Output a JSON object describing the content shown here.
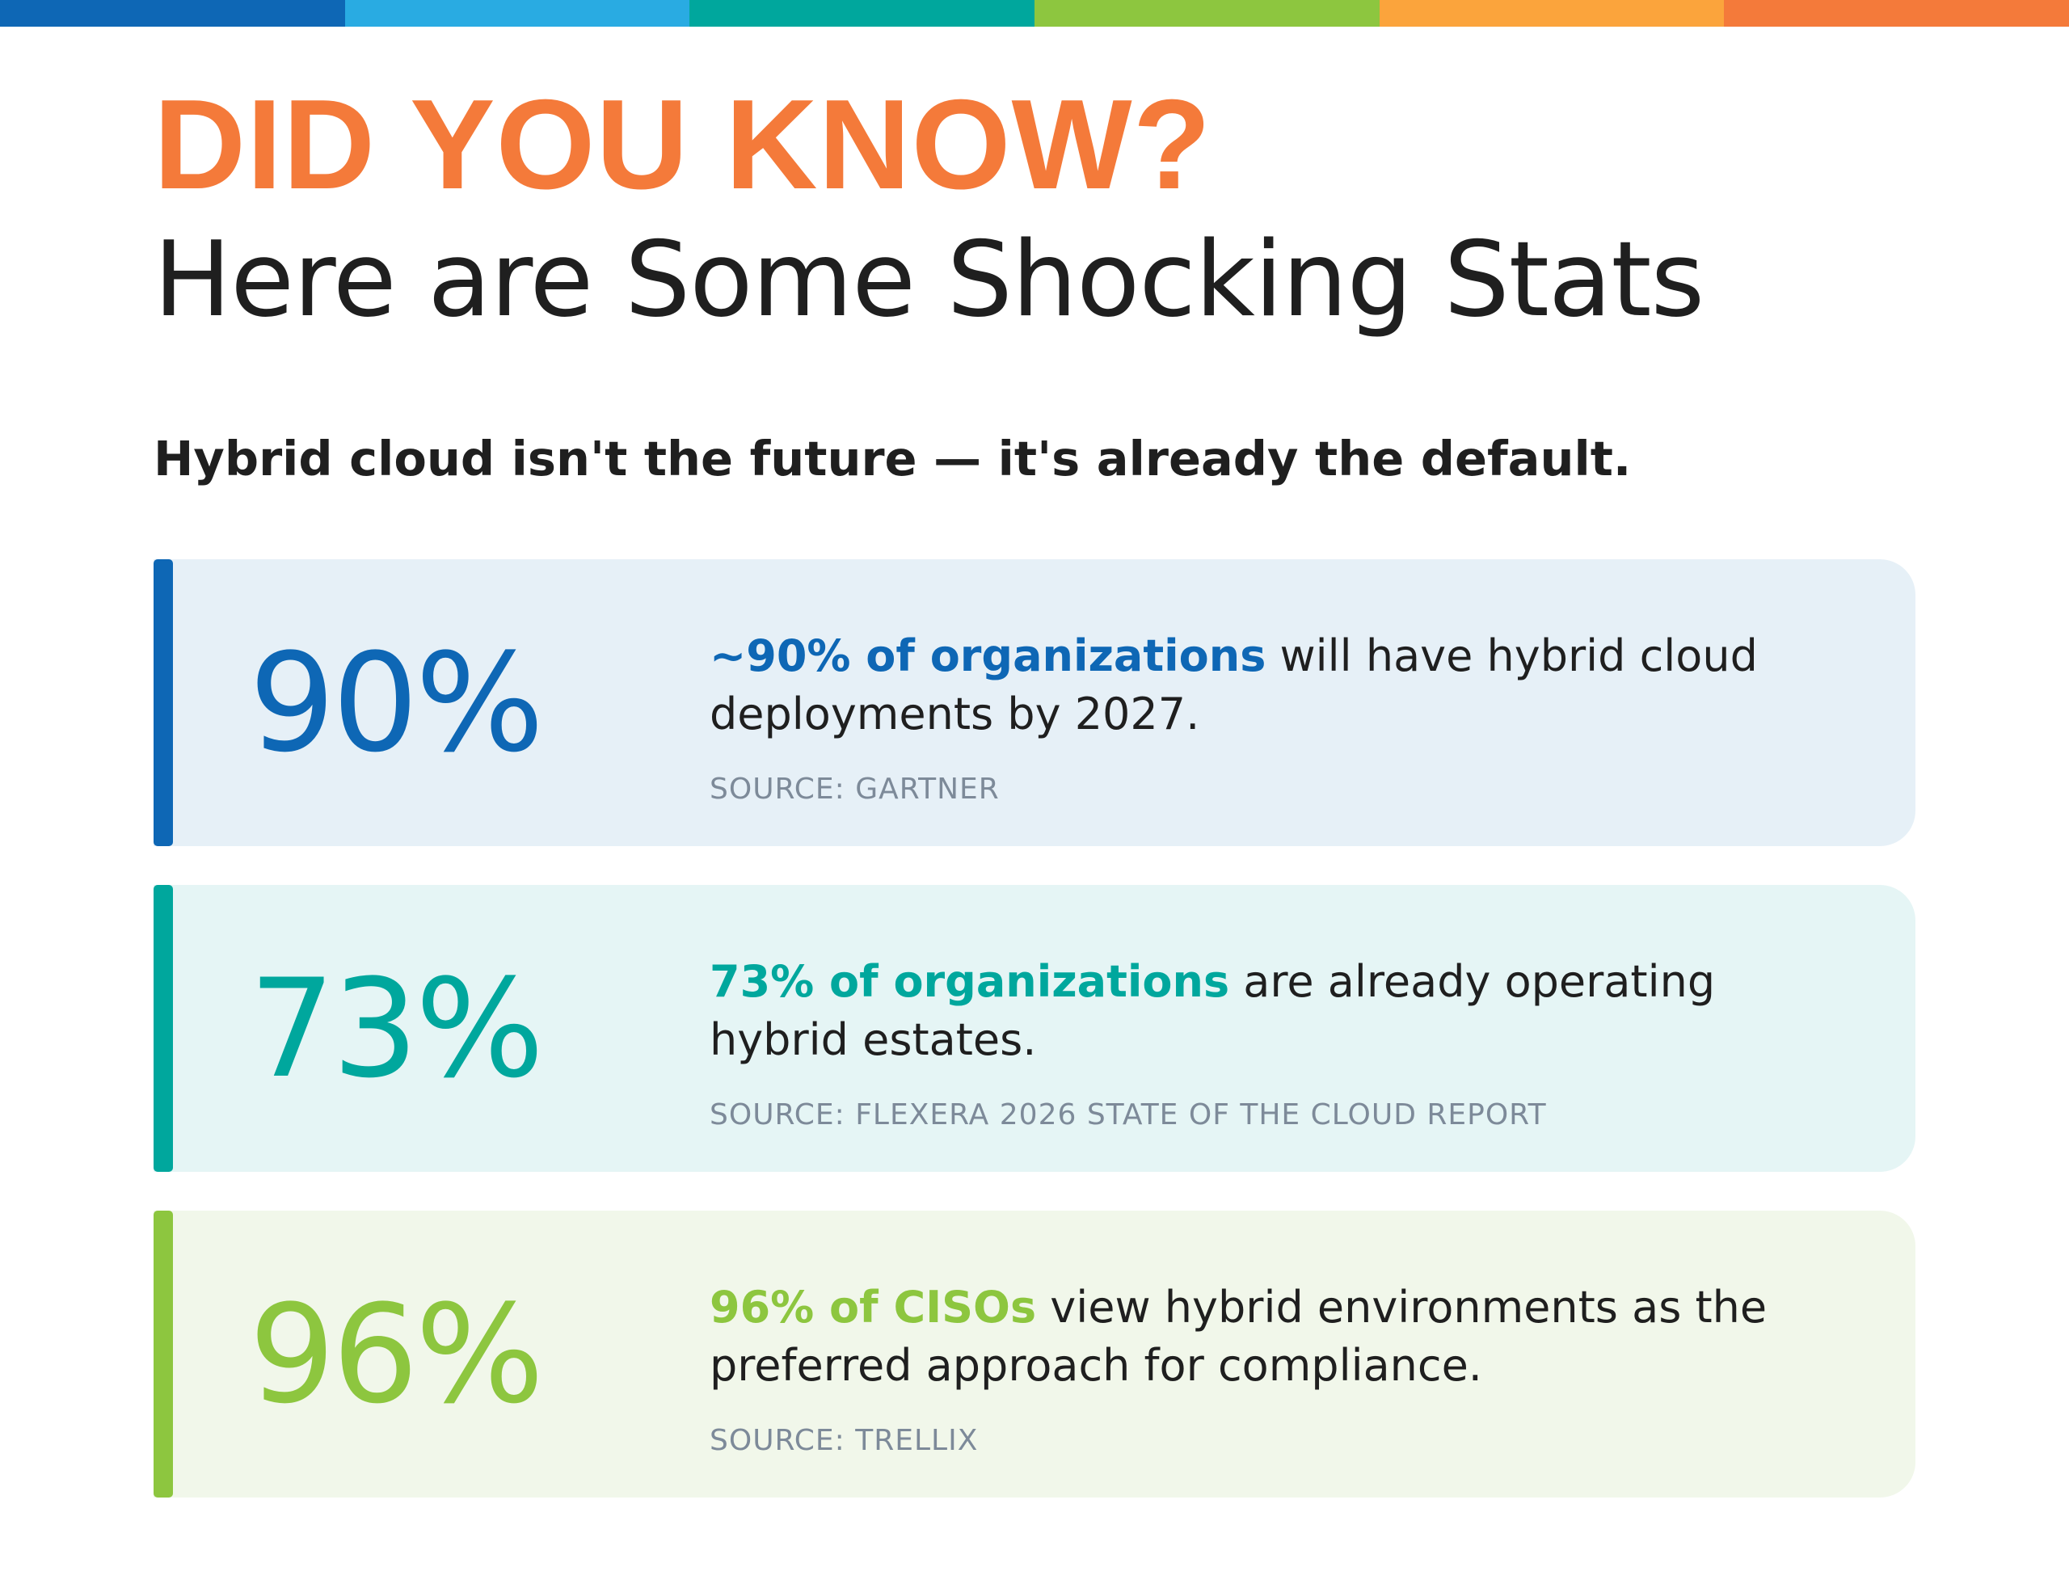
{
  "colors": {
    "top_bar": [
      "#0E67B5",
      "#29ABE2",
      "#00A79D",
      "#8DC63F",
      "#FBA43C",
      "#F47A3A"
    ],
    "eyebrow": "#F47A3A",
    "headline": "#1f1f1f",
    "source": "#7d8a99"
  },
  "header": {
    "eyebrow": "DID YOU KNOW?",
    "title": "Here are Some Shocking Stats",
    "subtitle": "Hybrid cloud isn't the future — it's already the default."
  },
  "stats": [
    {
      "value": "90%",
      "highlight": "~90% of organizations",
      "text": " will have hybrid cloud deployments by 2027.",
      "source": "SOURCE: GARTNER",
      "accent": "#0E67B5",
      "background": "#E6F0F7"
    },
    {
      "value": "73%",
      "highlight": "73% of organizations",
      "text": " are already operating hybrid estates.",
      "source": "SOURCE: FLEXERA 2026 STATE OF THE CLOUD REPORT",
      "accent": "#00A79D",
      "background": "#E5F5F5"
    },
    {
      "value": "96%",
      "highlight": "96% of CISOs",
      "text": " view hybrid environments as the preferred approach for compliance.",
      "source": "SOURCE: TRELLIX",
      "accent": "#8DC63F",
      "background": "#F1F7EA"
    }
  ]
}
